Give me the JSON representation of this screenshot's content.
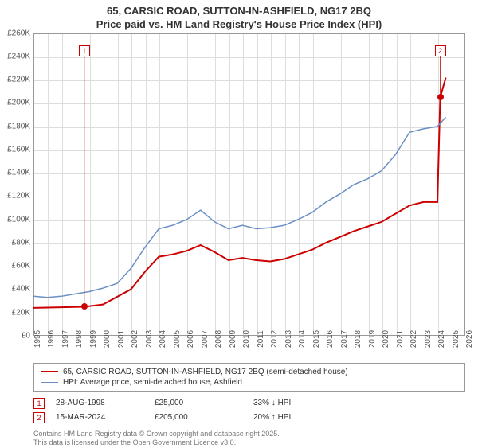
{
  "title_line1": "65, CARSIC ROAD, SUTTON-IN-ASHFIELD, NG17 2BQ",
  "title_line2": "Price paid vs. HM Land Registry's House Price Index (HPI)",
  "chart": {
    "type": "line",
    "background_color": "#ffffff",
    "grid_color": "#dddddd",
    "axis_color": "#999999",
    "x_years": [
      1995,
      1996,
      1997,
      1998,
      1999,
      2000,
      2001,
      2002,
      2003,
      2004,
      2005,
      2006,
      2007,
      2008,
      2009,
      2010,
      2011,
      2012,
      2013,
      2014,
      2015,
      2016,
      2017,
      2018,
      2019,
      2020,
      2021,
      2022,
      2023,
      2024,
      2025,
      2026
    ],
    "xlim": [
      1995,
      2026
    ],
    "ylim": [
      0,
      260000
    ],
    "ytick_step": 20000,
    "ytick_prefix": "£",
    "ytick_suffix": "K",
    "ytick_divisor": 1000,
    "series": [
      {
        "name": "price_paid",
        "label": "65, CARSIC ROAD, SUTTON-IN-ASHFIELD, NG17 2BQ (semi-detached house)",
        "color": "#cc0000",
        "line_width": 2,
        "points": [
          [
            1995,
            24000
          ],
          [
            1998.65,
            25000
          ],
          [
            2000,
            27000
          ],
          [
            2002,
            40000
          ],
          [
            2003,
            55000
          ],
          [
            2004,
            68000
          ],
          [
            2005,
            70000
          ],
          [
            2006,
            73000
          ],
          [
            2007,
            78000
          ],
          [
            2008,
            72000
          ],
          [
            2009,
            65000
          ],
          [
            2010,
            67000
          ],
          [
            2011,
            65000
          ],
          [
            2012,
            64000
          ],
          [
            2013,
            66000
          ],
          [
            2014,
            70000
          ],
          [
            2015,
            74000
          ],
          [
            2016,
            80000
          ],
          [
            2017,
            85000
          ],
          [
            2018,
            90000
          ],
          [
            2019,
            94000
          ],
          [
            2020,
            98000
          ],
          [
            2021,
            105000
          ],
          [
            2022,
            112000
          ],
          [
            2023,
            115000
          ],
          [
            2024.0,
            115000
          ],
          [
            2024.2,
            205000
          ],
          [
            2024.6,
            222000
          ]
        ]
      },
      {
        "name": "hpi",
        "label": "HPI: Average price, semi-detached house, Ashfield",
        "color": "#6a8fc5",
        "line_width": 1.5,
        "points": [
          [
            1995,
            34000
          ],
          [
            1996,
            33000
          ],
          [
            1997,
            34000
          ],
          [
            1998,
            36000
          ],
          [
            1999,
            38000
          ],
          [
            2000,
            41000
          ],
          [
            2001,
            45000
          ],
          [
            2002,
            58000
          ],
          [
            2003,
            76000
          ],
          [
            2004,
            92000
          ],
          [
            2005,
            95000
          ],
          [
            2006,
            100000
          ],
          [
            2007,
            108000
          ],
          [
            2008,
            98000
          ],
          [
            2009,
            92000
          ],
          [
            2010,
            95000
          ],
          [
            2011,
            92000
          ],
          [
            2012,
            93000
          ],
          [
            2013,
            95000
          ],
          [
            2014,
            100000
          ],
          [
            2015,
            106000
          ],
          [
            2016,
            115000
          ],
          [
            2017,
            122000
          ],
          [
            2018,
            130000
          ],
          [
            2019,
            135000
          ],
          [
            2020,
            142000
          ],
          [
            2021,
            156000
          ],
          [
            2022,
            175000
          ],
          [
            2023,
            178000
          ],
          [
            2024,
            180000
          ],
          [
            2024.6,
            188000
          ]
        ]
      }
    ],
    "markers": [
      {
        "id": "1",
        "x": 1998.65,
        "y_box": 245000,
        "y_dot": 25000,
        "dot_color": "#cc0000"
      },
      {
        "id": "2",
        "x": 2024.2,
        "y_box": 245000,
        "y_dot": 205000,
        "dot_color": "#cc0000"
      }
    ]
  },
  "legend": {
    "items": [
      {
        "color": "#cc0000",
        "width": 2,
        "label_key": "chart.series.0.label"
      },
      {
        "color": "#6a8fc5",
        "width": 1.5,
        "label_key": "chart.series.1.label"
      }
    ]
  },
  "events": [
    {
      "id": "1",
      "date": "28-AUG-1998",
      "price": "£25,000",
      "delta": "33% ↓ HPI"
    },
    {
      "id": "2",
      "date": "15-MAR-2024",
      "price": "£205,000",
      "delta": "20% ↑ HPI"
    }
  ],
  "footer_line1": "Contains HM Land Registry data © Crown copyright and database right 2025.",
  "footer_line2": "This data is licensed under the Open Government Licence v3.0."
}
